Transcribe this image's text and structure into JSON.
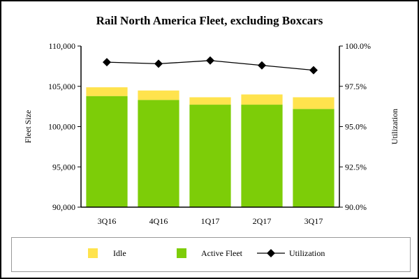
{
  "chart_data": {
    "type": "bar",
    "title": "Rail North America Fleet, excluding Boxcars",
    "ylabel": "Fleet Size",
    "y2label": "Utilization",
    "categories": [
      "3Q16",
      "4Q16",
      "1Q17",
      "2Q17",
      "3Q17"
    ],
    "ylim": [
      90000,
      110000
    ],
    "yticks": [
      "90,000",
      "95,000",
      "100,000",
      "105,000",
      "110,000"
    ],
    "y2lim": [
      90,
      100
    ],
    "y2ticks": [
      "90.0%",
      "92.5%",
      "95.0%",
      "97.5%",
      "100.0%"
    ],
    "stacked": true,
    "series": [
      {
        "name": "Active Fleet",
        "type": "bar",
        "color": "#7dcd08",
        "values": [
          103780,
          103300,
          102720,
          102720,
          102180
        ]
      },
      {
        "name": "Idle",
        "type": "bar",
        "color": "#ffe34d",
        "values": [
          1100,
          1180,
          920,
          1270,
          1460
        ]
      },
      {
        "name": "Utilization",
        "type": "line",
        "axis": "right",
        "color": "#000000",
        "marker": "diamond",
        "values": [
          99.0,
          98.9,
          99.1,
          98.8,
          98.5
        ]
      }
    ],
    "legend_position": "bottom",
    "legend": [
      "Idle",
      "Active Fleet",
      "Utilization"
    ],
    "grid": false
  }
}
